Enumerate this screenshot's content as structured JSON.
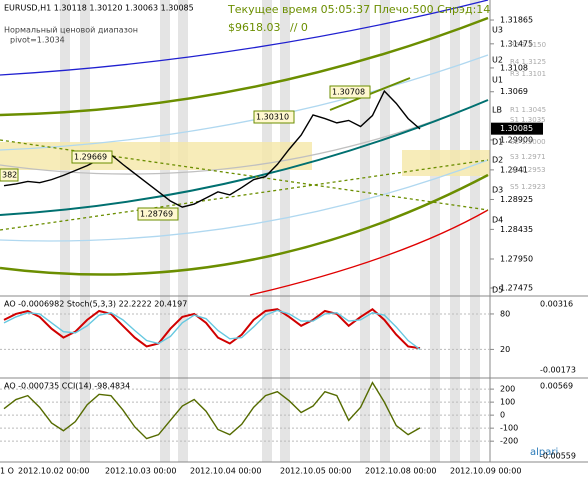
{
  "header": {
    "symbol": "EURUSD,H1  1.30118 1.30120 1.30063 1.30085",
    "indicator": "Нормальный ценовой диапазон",
    "pivot": "pivot=1.3034",
    "status": "Текущее время 05:05:37 Плечо:500 Спрэд:14",
    "balance": "$9618.03",
    "mark": "// 0"
  },
  "levels": [
    "U3",
    "U2",
    "U1",
    "LB",
    "D1",
    "D2",
    "D3",
    "D4",
    "D5"
  ],
  "pivots": [
    "R5 1.3150",
    "R4 1.3125",
    "R3 1.3101",
    "R1 1.3045",
    "S1 1.3035",
    "S2 1.3000",
    "S3 1.2971",
    "S4 1.2953",
    "S5 1.2923"
  ],
  "callouts": [
    "382",
    "1.29669",
    "1.28769",
    "1.30310",
    "1.30708"
  ],
  "current_price": "1.30085",
  "dates": [
    "1 O",
    "2012.10.02 00:00",
    "2012.10.03 00:00",
    "2012.10.04 00:00",
    "2012.10.05 00:00",
    "2012.10.08 00:00",
    "2012.10.09 00:00"
  ],
  "brand": "alpari",
  "chart_data": [
    {
      "type": "line",
      "name": "EURUSD,H1",
      "values": [
        1.2915,
        1.2918,
        1.2922,
        1.292,
        1.2925,
        1.2932,
        1.294,
        1.2948,
        1.2958,
        1.2966,
        1.295,
        1.2935,
        1.292,
        1.2905,
        1.289,
        1.288,
        1.2885,
        1.2895,
        1.2905,
        1.29,
        1.2912,
        1.2925,
        1.293,
        1.295,
        1.2975,
        1.2998,
        1.3031,
        1.3025,
        1.3018,
        1.3022,
        1.3012,
        1.303,
        1.307,
        1.305,
        1.3025,
        1.3008
      ],
      "color": "#000000",
      "ylim": [
        1.2736,
        1.32193
      ],
      "yticks": [
        1.31865,
        1.31475,
        1.3108,
        1.3069,
        {
          "value": 1.299,
          "label": "1.29900"
        },
        1.2941,
        1.28925,
        1.28435,
        {
          "value": 1.2795,
          "label": "1.27950"
        },
        1.27475
      ]
    },
    {
      "type": "line",
      "title": "AO -0.0006982  Stoch(5,3,3) 22.2222 20.4197",
      "series": [
        {
          "name": "Stoch",
          "color": "#d00000",
          "values": [
            70,
            80,
            85,
            75,
            55,
            40,
            50,
            70,
            85,
            80,
            60,
            40,
            25,
            30,
            55,
            75,
            80,
            65,
            40,
            30,
            45,
            70,
            85,
            88,
            75,
            60,
            70,
            85,
            80,
            60,
            75,
            88,
            70,
            45,
            25,
            22
          ]
        },
        {
          "name": "Signal",
          "color": "#66c8e0",
          "values": [
            65,
            75,
            82,
            80,
            65,
            50,
            48,
            60,
            78,
            82,
            70,
            52,
            35,
            30,
            42,
            65,
            78,
            72,
            52,
            38,
            40,
            58,
            78,
            86,
            80,
            68,
            68,
            80,
            82,
            68,
            70,
            82,
            78,
            58,
            35,
            20
          ]
        }
      ],
      "ylim": [
        -25,
        107
      ],
      "yticks": [
        80,
        20
      ],
      "axis_labels": [
        "0.00316",
        "-0.00173"
      ]
    },
    {
      "type": "line",
      "title": "AO -0.000735  CCI(14) -98.4834",
      "series": [
        {
          "name": "CCI",
          "color": "#556b00",
          "values": [
            50,
            120,
            150,
            60,
            -60,
            -120,
            -50,
            80,
            160,
            150,
            40,
            -90,
            -180,
            -150,
            -40,
            70,
            120,
            30,
            -110,
            -150,
            -70,
            60,
            150,
            180,
            110,
            20,
            70,
            180,
            150,
            -40,
            60,
            250,
            100,
            -80,
            -150,
            -98
          ]
        }
      ],
      "ylim": [
        -360,
        270
      ],
      "yticks": [
        200,
        100,
        0,
        -100,
        -200
      ],
      "axis_labels": [
        "0.00569",
        "-0.00559"
      ]
    }
  ]
}
